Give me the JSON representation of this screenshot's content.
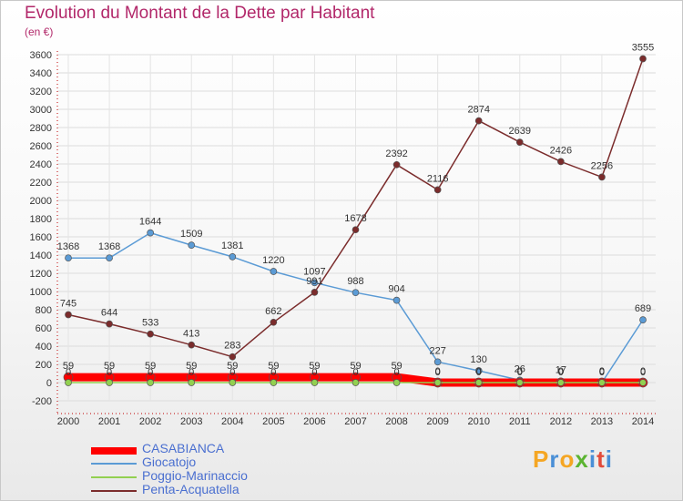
{
  "chart_data": {
    "type": "line",
    "title": "Evolution du Montant de la Dette par Habitant",
    "subtitle": "(en €)",
    "x": [
      "2000",
      "2001",
      "2002",
      "2003",
      "2004",
      "2005",
      "2006",
      "2007",
      "2008",
      "2009",
      "2010",
      "2011",
      "2012",
      "2013",
      "2014"
    ],
    "ylim": [
      -200,
      3600
    ],
    "yticks": [
      -200,
      0,
      200,
      400,
      600,
      800,
      1000,
      1200,
      1400,
      1600,
      1800,
      2000,
      2200,
      2400,
      2600,
      2800,
      3000,
      3200,
      3400,
      3600
    ],
    "grid": true,
    "legend_position": "bottom-left",
    "series": [
      {
        "name": "CASABIANCA",
        "color": "#ff0000",
        "values": [
          59,
          59,
          59,
          59,
          59,
          59,
          59,
          59,
          59,
          0,
          0,
          0,
          0,
          0,
          0
        ],
        "labels": [
          "59",
          "59",
          "59",
          "59",
          "59",
          "59",
          "59",
          "59",
          "59",
          "0",
          "0",
          "0",
          "0",
          "0",
          "0"
        ]
      },
      {
        "name": "Giocatojo",
        "color": "#5b9bd5",
        "values": [
          1368,
          1368,
          1644,
          1509,
          1381,
          1220,
          1097,
          988,
          904,
          227,
          130,
          26,
          17,
          0,
          689
        ],
        "labels": [
          "1368",
          "1368",
          "1644",
          "1509",
          "1381",
          "1220",
          "1097",
          "988",
          "904",
          "227",
          "130",
          "26",
          "17",
          "0",
          "689"
        ]
      },
      {
        "name": "Poggio-Marinaccio",
        "color": "#92d050",
        "values": [
          0,
          0,
          0,
          0,
          0,
          0,
          0,
          0,
          0,
          0,
          0,
          0,
          0,
          0,
          0
        ],
        "labels": [
          "0",
          "0",
          "0",
          "0",
          "0",
          "0",
          "0",
          "0",
          "0",
          "0",
          "0",
          "0",
          "0",
          "0",
          "0"
        ]
      },
      {
        "name": "Penta-Acquatella",
        "color": "#7b2c2c",
        "values": [
          745,
          644,
          533,
          413,
          283,
          662,
          991,
          1678,
          2392,
          2116,
          2874,
          2639,
          2426,
          2256,
          3555
        ],
        "labels": [
          "745",
          "644",
          "533",
          "413",
          "283",
          "662",
          "991",
          "1678",
          "2392",
          "2116",
          "2874",
          "2639",
          "2426",
          "2256",
          "3555"
        ]
      }
    ]
  },
  "logo": {
    "letters": [
      "P",
      "r",
      "o",
      "x",
      "i",
      "t",
      "i"
    ]
  }
}
